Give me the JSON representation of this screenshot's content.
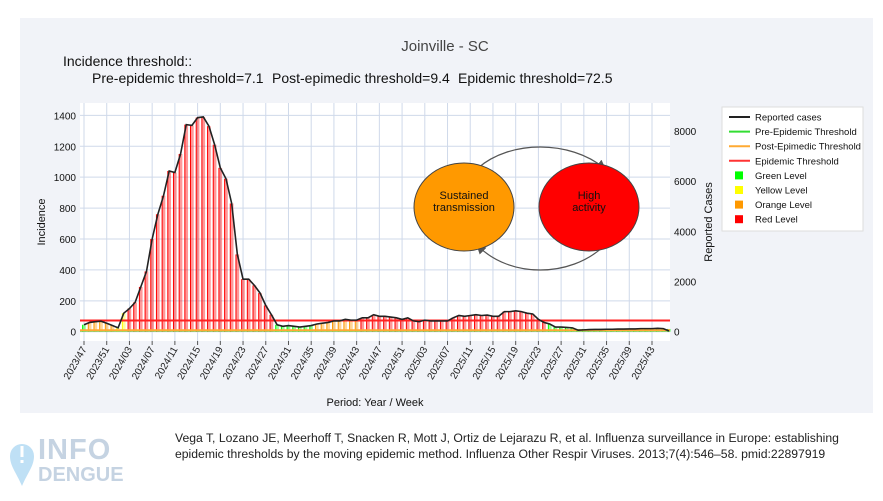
{
  "header": {
    "title": "Joinville - SC",
    "threshold_heading": "Incidence threshold::",
    "pre_label": "Pre-epidemic threshold=7.1",
    "post_label": "Post-epimedic threshold=9.4",
    "epi_label": "Epidemic threshold=72.5"
  },
  "diagram": {
    "left": "Sustained transmission",
    "right": "High activity",
    "left_color": "#ff9900",
    "right_color": "#ff0000"
  },
  "legend": [
    {
      "label": "Reported cases",
      "kind": "line",
      "color": "#222222"
    },
    {
      "label": "Pre-Epidemic Threshold",
      "kind": "line",
      "color": "#33dd33"
    },
    {
      "label": "Post-Epimedic Threshold",
      "kind": "line",
      "color": "#ffaa33"
    },
    {
      "label": "Epidemic Threshold",
      "kind": "line",
      "color": "#ff3333"
    },
    {
      "label": "Green Level",
      "kind": "square",
      "color": "#00ff00"
    },
    {
      "label": "Yellow Level",
      "kind": "square",
      "color": "#ffff00"
    },
    {
      "label": "Orange Level",
      "kind": "square",
      "color": "#ff9900"
    },
    {
      "label": "Red Level",
      "kind": "square",
      "color": "#ff0000"
    }
  ],
  "chart_data": {
    "type": "line",
    "xlabel": "Period: Year / Week",
    "ylabel": "Incidence",
    "y2label": "Reported Cases",
    "ylim": [
      -60,
      1480
    ],
    "y2lim": [
      -370,
      9120
    ],
    "yticks": [
      0,
      200,
      400,
      600,
      800,
      1000,
      1200,
      1400
    ],
    "y2ticks": [
      0,
      2000,
      4000,
      6000,
      8000
    ],
    "grid": true,
    "legend_position": "right",
    "thresholds": {
      "pre_epidemic": 7.1,
      "post_epidemic": 9.4,
      "epidemic": 72.5
    },
    "xtick_labels": [
      "2023/47",
      "2023/51",
      "2024/03",
      "2024/07",
      "2024/11",
      "2024/15",
      "2024/19",
      "2024/23",
      "2024/27",
      "2024/31",
      "2024/35",
      "2024/39",
      "2024/43",
      "2024/47",
      "2024/51",
      "2025/03",
      "2025/07",
      "2025/11",
      "2025/15",
      "2025/19",
      "2025/23",
      "2025/27",
      "2025/31",
      "2025/35",
      "2025/39",
      "2025/43"
    ],
    "x": [
      "2023/47",
      "2023/48",
      "2023/49",
      "2023/50",
      "2023/51",
      "2023/52",
      "2024/01",
      "2024/02",
      "2024/03",
      "2024/04",
      "2024/05",
      "2024/06",
      "2024/07",
      "2024/08",
      "2024/09",
      "2024/10",
      "2024/11",
      "2024/12",
      "2024/13",
      "2024/14",
      "2024/15",
      "2024/16",
      "2024/17",
      "2024/18",
      "2024/19",
      "2024/20",
      "2024/21",
      "2024/22",
      "2024/23",
      "2024/24",
      "2024/25",
      "2024/26",
      "2024/27",
      "2024/28",
      "2024/29",
      "2024/30",
      "2024/31",
      "2024/32",
      "2024/33",
      "2024/34",
      "2024/35",
      "2024/36",
      "2024/37",
      "2024/38",
      "2024/39",
      "2024/40",
      "2024/41",
      "2024/42",
      "2024/43",
      "2024/44",
      "2024/45",
      "2024/46",
      "2024/47",
      "2024/48",
      "2024/49",
      "2024/50",
      "2024/51",
      "2024/52",
      "2025/01",
      "2025/02",
      "2025/03",
      "2025/04",
      "2025/05",
      "2025/06",
      "2025/07",
      "2025/08",
      "2025/09",
      "2025/10",
      "2025/11",
      "2025/12",
      "2025/13",
      "2025/14",
      "2025/15",
      "2025/16",
      "2025/17",
      "2025/18",
      "2025/19",
      "2025/20",
      "2025/21",
      "2025/22",
      "2025/23",
      "2025/24",
      "2025/25",
      "2025/26",
      "2025/27",
      "2025/28",
      "2025/29",
      "2025/30",
      "2025/31",
      "2025/32",
      "2025/33",
      "2025/34",
      "2025/35",
      "2025/36",
      "2025/37",
      "2025/38",
      "2025/39",
      "2025/40",
      "2025/41",
      "2025/42",
      "2025/43",
      "2025/44",
      "2025/45",
      "2025/46"
    ],
    "incidence": [
      45,
      60,
      65,
      68,
      55,
      40,
      25,
      120,
      150,
      190,
      290,
      390,
      600,
      760,
      880,
      1040,
      1030,
      1150,
      1340,
      1335,
      1385,
      1390,
      1330,
      1210,
      1060,
      990,
      830,
      500,
      340,
      340,
      300,
      250,
      170,
      110,
      45,
      35,
      40,
      35,
      30,
      35,
      40,
      50,
      55,
      60,
      70,
      70,
      80,
      75,
      75,
      90,
      90,
      110,
      100,
      100,
      95,
      90,
      80,
      90,
      70,
      65,
      75,
      70,
      70,
      70,
      70,
      90,
      105,
      100,
      105,
      110,
      105,
      108,
      100,
      100,
      130,
      130,
      135,
      130,
      120,
      115,
      80,
      60,
      50,
      30,
      30,
      28,
      25,
      10,
      12,
      14,
      15,
      15,
      16,
      16,
      17,
      17,
      18,
      18,
      20,
      20,
      20,
      22,
      20,
      5
    ],
    "levels": [
      "green",
      "orange",
      "orange",
      "orange",
      "orange",
      "orange",
      "yellow",
      "yellow",
      "red",
      "red",
      "red",
      "red",
      "red",
      "red",
      "red",
      "red",
      "red",
      "red",
      "red",
      "red",
      "red",
      "red",
      "red",
      "red",
      "red",
      "red",
      "red",
      "red",
      "red",
      "red",
      "red",
      "red",
      "red",
      "red",
      "green",
      "green",
      "green",
      "green",
      "green",
      "green",
      "green",
      "orange",
      "orange",
      "orange",
      "orange",
      "orange",
      "orange",
      "orange",
      "orange",
      "red",
      "red",
      "red",
      "red",
      "red",
      "red",
      "red",
      "red",
      "red",
      "red",
      "red",
      "red",
      "red",
      "red",
      "red",
      "red",
      "red",
      "red",
      "red",
      "red",
      "red",
      "red",
      "red",
      "red",
      "red",
      "red",
      "red",
      "red",
      "red",
      "red",
      "red",
      "red",
      "red",
      "green",
      "green",
      "green",
      "green",
      "green",
      "green",
      "green",
      "green",
      "green",
      "green",
      "green",
      "green",
      "green",
      "green",
      "green",
      "green",
      "green",
      "green",
      "green",
      "green",
      "green",
      "green"
    ]
  },
  "citation": "Vega T, Lozano JE, Meerhoff T, Snacken R, Mott J, Ortiz de Lejarazu R, et al. Influenza surveillance in Europe: establishing epidemic thresholds by the moving epidemic method. Influenza Other Respir Viruses. 2013;7(4):546–58. pmid:22897919",
  "logo": {
    "top": "INFO",
    "bottom": "DENGUE"
  }
}
